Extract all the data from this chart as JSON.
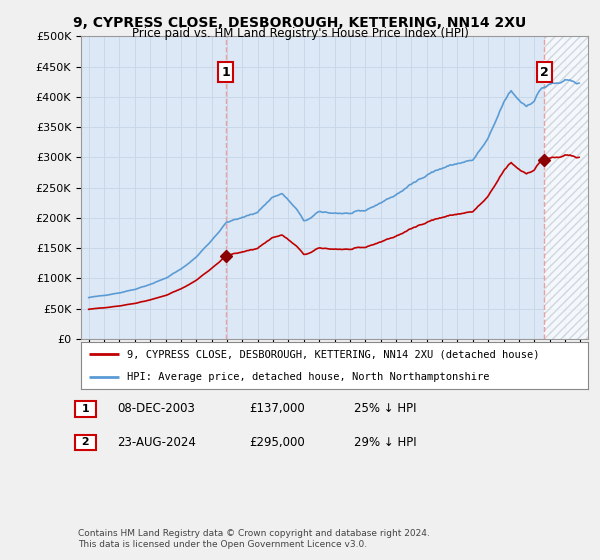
{
  "title": "9, CYPRESS CLOSE, DESBOROUGH, KETTERING, NN14 2XU",
  "subtitle": "Price paid vs. HM Land Registry's House Price Index (HPI)",
  "legend_line1": "9, CYPRESS CLOSE, DESBOROUGH, KETTERING, NN14 2XU (detached house)",
  "legend_line2": "HPI: Average price, detached house, North Northamptonshire",
  "annotation1_label": "1",
  "annotation1_date": "08-DEC-2003",
  "annotation1_price": 137000,
  "annotation1_text": "25% ↓ HPI",
  "annotation2_label": "2",
  "annotation2_date": "23-AUG-2024",
  "annotation2_price": 295000,
  "annotation2_text": "29% ↓ HPI",
  "footnote": "Contains HM Land Registry data © Crown copyright and database right 2024.\nThis data is licensed under the Open Government Licence v3.0.",
  "sale1_year": 2003.92,
  "sale1_value": 137000,
  "sale2_year": 2024.64,
  "sale2_value": 295000,
  "hpi_color": "#5b9bd5",
  "price_color": "#c00000",
  "sale_marker_color": "#8b0000",
  "annotation_box_color": "#cc0000",
  "vline_color": "#e8a0a0",
  "grid_color": "#c8d8e8",
  "bg_color": "#f0f0f0",
  "plot_bg_color": "#dce8f5",
  "hatch_color": "#c0c8d0",
  "ylim_max": 500000,
  "ylim_min": 0,
  "xmin": 1994.5,
  "xmax": 2027.5
}
